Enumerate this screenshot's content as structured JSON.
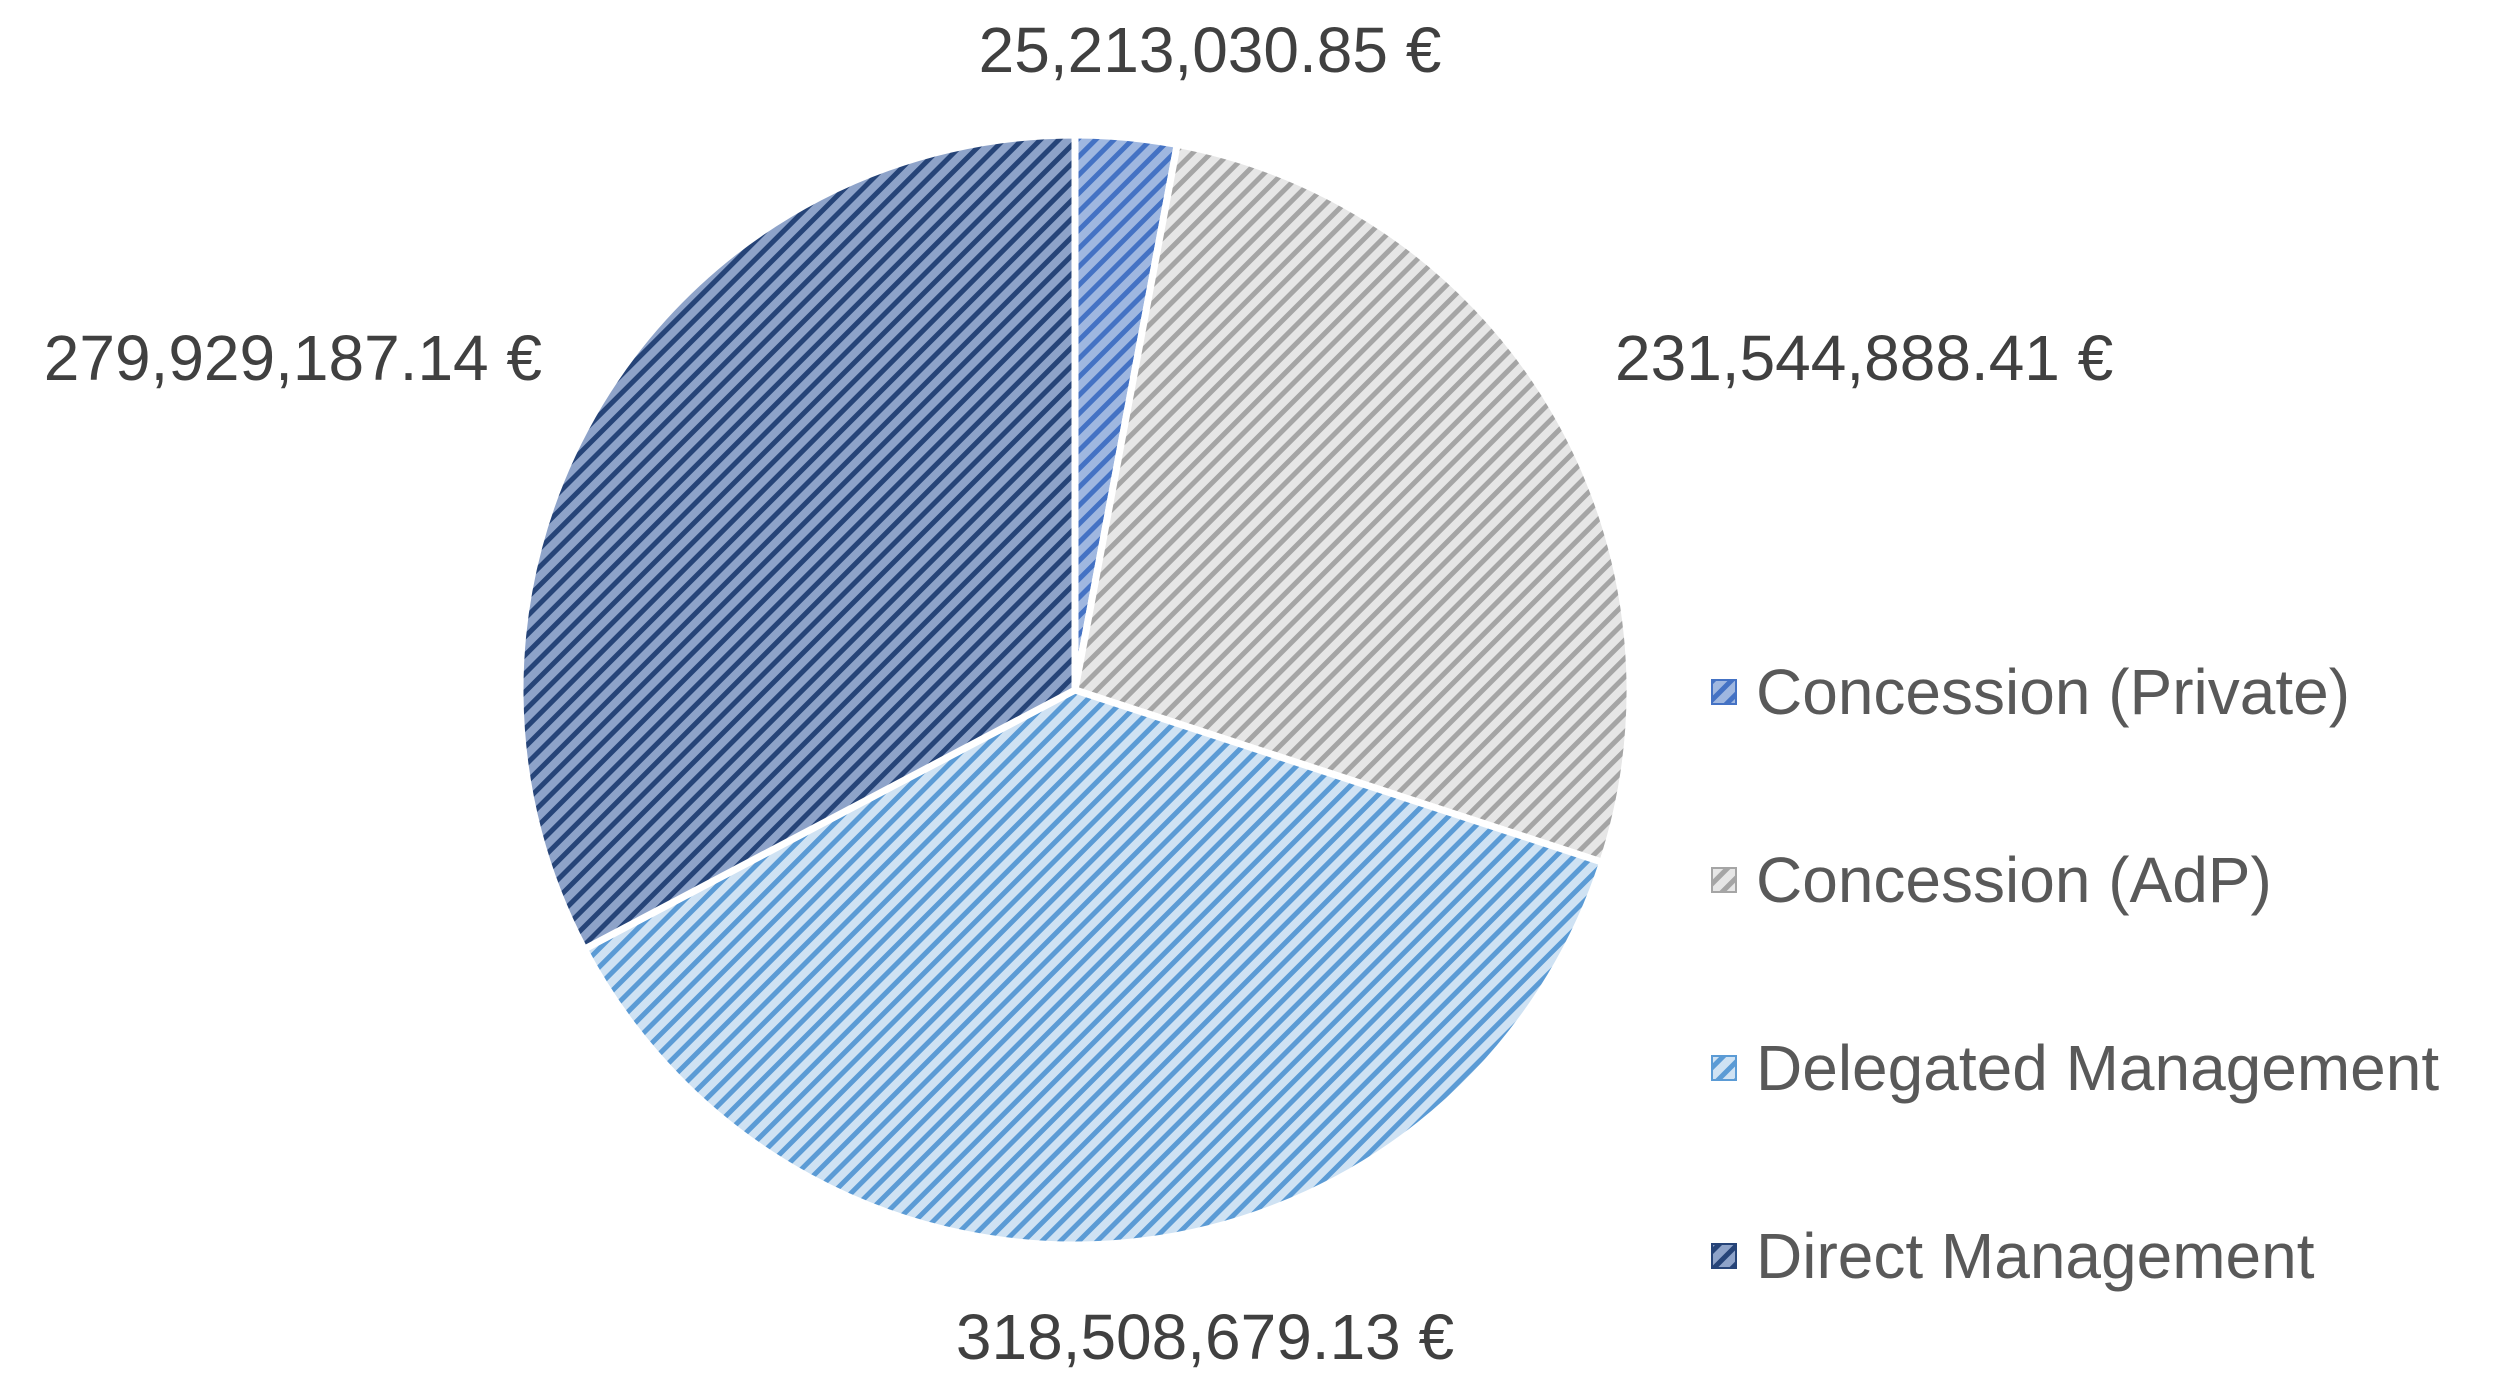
{
  "chart_data": {
    "type": "pie",
    "title": "",
    "currency_suffix": " €",
    "slices": [
      {
        "name": "Concession (Private)",
        "value": 25213030.85,
        "label": "25,213,030.85 €",
        "color": "#4472c4",
        "fill_light": "#9fb7e0",
        "pattern": "diagonal-stripes"
      },
      {
        "name": "Concession (AdP)",
        "value": 231544888.41,
        "label": "231,544,888.41 €",
        "color": "#a5a5a5",
        "fill_light": "#e6e6e6",
        "pattern": "diagonal-stripes"
      },
      {
        "name": "Delegated Management",
        "value": 318508679.13,
        "label": "318,508,679.13 €",
        "color": "#5b9bd5",
        "fill_light": "#cfe2f3",
        "pattern": "diagonal-stripes"
      },
      {
        "name": "Direct Management",
        "value": 279929187.14,
        "label": "279,929,187.14 €",
        "color": "#264478",
        "fill_light": "#8ea3c9",
        "pattern": "diagonal-stripes"
      }
    ],
    "start_angle_deg": 0,
    "direction": "clockwise",
    "legend_position": "right",
    "label_position": "outside"
  }
}
